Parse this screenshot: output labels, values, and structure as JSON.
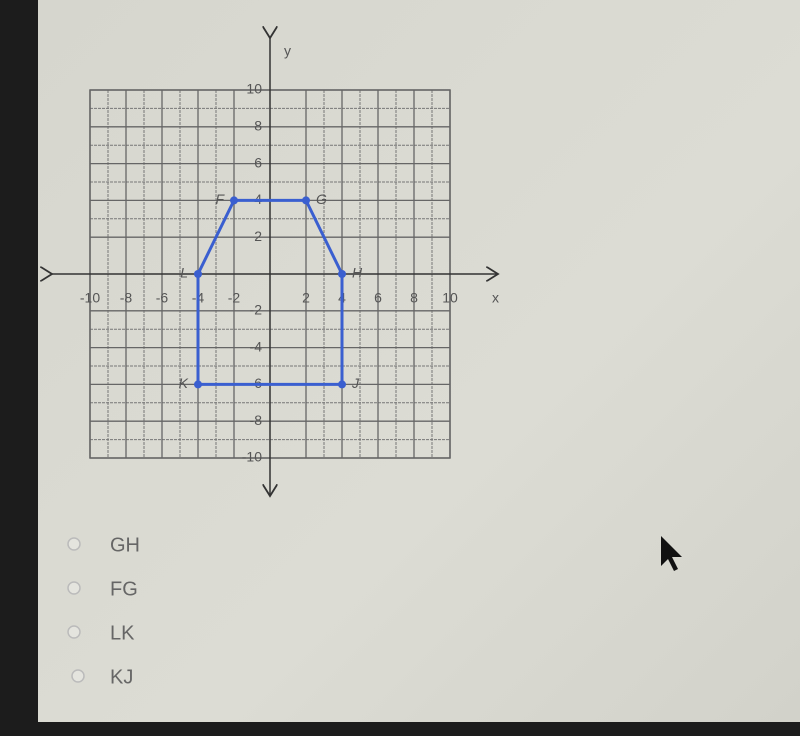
{
  "graph": {
    "x_label": "x",
    "y_label": "y",
    "xlim": [
      -10,
      10
    ],
    "ylim": [
      -10,
      10
    ],
    "xticks": [
      -10,
      -8,
      -6,
      -4,
      -2,
      2,
      4,
      6,
      8,
      10
    ],
    "yticks": [
      -10,
      -8,
      -6,
      -4,
      -2,
      2,
      4,
      6,
      8,
      10
    ],
    "color": "#3a5fd0",
    "points": [
      {
        "label": "F",
        "x": -2,
        "y": 4
      },
      {
        "label": "G",
        "x": 2,
        "y": 4
      },
      {
        "label": "H",
        "x": 4,
        "y": 0
      },
      {
        "label": "J",
        "x": 4,
        "y": -6
      },
      {
        "label": "K",
        "x": -4,
        "y": -6
      },
      {
        "label": "L",
        "x": -4,
        "y": 0
      }
    ]
  },
  "options": [
    "GH",
    "FG",
    "LK",
    "KJ"
  ]
}
